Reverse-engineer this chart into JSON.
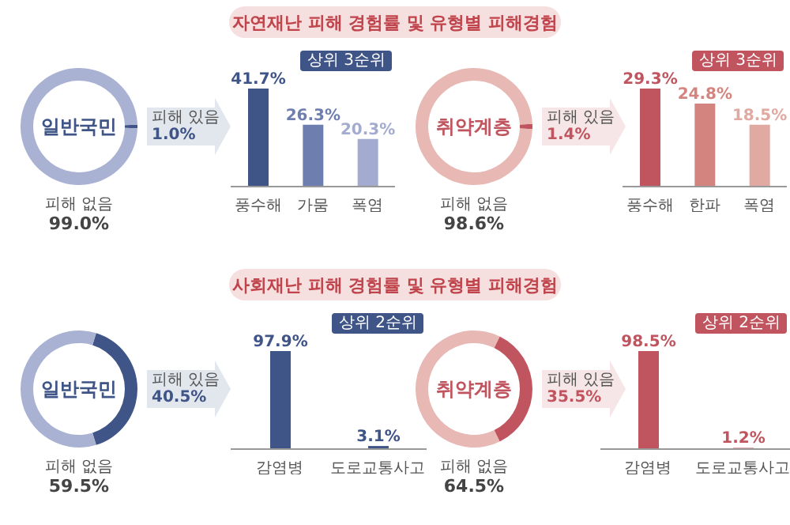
{
  "chart_data": [
    {
      "type": "other",
      "title": "자연재난 피해 경험률 및 유형별 피해경험"
    },
    {
      "type": "donut",
      "title": "일반국민",
      "categories": [
        "피해 있음",
        "피해 없음"
      ],
      "values": [
        1.0,
        99.0
      ],
      "colors": [
        "#3f5487",
        "#a9b2d3"
      ],
      "value_labels": [
        "1.0%",
        "99.0%"
      ]
    },
    {
      "type": "bar",
      "categories": [
        "풍수해",
        "가뭄",
        "폭염"
      ],
      "values": [
        41.7,
        26.3,
        20.3
      ],
      "colors": [
        "#3f5487",
        "#6e7faf",
        "#a3acd0"
      ],
      "value_labels": [
        "41.7%",
        "26.3%",
        "20.3%"
      ],
      "annotations": [
        "상위 3순위"
      ]
    },
    {
      "type": "donut",
      "title": "취약계층",
      "categories": [
        "피해 있음",
        "피해 없음"
      ],
      "values": [
        1.4,
        98.6
      ],
      "colors": [
        "#c0555f",
        "#e8b8b4"
      ],
      "value_labels": [
        "1.4%",
        "98.6%"
      ]
    },
    {
      "type": "bar",
      "categories": [
        "풍수해",
        "한파",
        "폭염"
      ],
      "values": [
        29.3,
        24.8,
        18.5
      ],
      "colors": [
        "#c0555f",
        "#d4847e",
        "#e0a9a2"
      ],
      "value_labels": [
        "29.3%",
        "24.8%",
        "18.5%"
      ],
      "annotations": [
        "상위 3순위"
      ]
    },
    {
      "type": "other",
      "title": "사회재난 피해 경험률 및 유형별 피해경험"
    },
    {
      "type": "donut",
      "title": "일반국민",
      "categories": [
        "피해 있음",
        "피해 없음"
      ],
      "values": [
        40.5,
        59.5
      ],
      "colors": [
        "#3f5487",
        "#a9b2d3"
      ],
      "value_labels": [
        "40.5%",
        "59.5%"
      ]
    },
    {
      "type": "bar",
      "categories": [
        "감염병",
        "도로교통사고"
      ],
      "values": [
        97.9,
        3.1
      ],
      "colors": [
        "#3f5487",
        "#3f5487"
      ],
      "value_labels": [
        "97.9%",
        "3.1%"
      ],
      "annotations": [
        "상위 2순위"
      ]
    },
    {
      "type": "donut",
      "title": "취약계층",
      "categories": [
        "피해 있음",
        "피해 없음"
      ],
      "values": [
        35.5,
        64.5
      ],
      "colors": [
        "#c0555f",
        "#e8b8b4"
      ],
      "value_labels": [
        "35.5%",
        "64.5%"
      ]
    },
    {
      "type": "bar",
      "categories": [
        "감염병",
        "도로교통사고"
      ],
      "values": [
        98.5,
        1.2
      ],
      "colors": [
        "#c0555f",
        "#c0555f"
      ],
      "value_labels": [
        "98.5%",
        "1.2%"
      ],
      "annotations": [
        "상위 2순위"
      ]
    }
  ]
}
